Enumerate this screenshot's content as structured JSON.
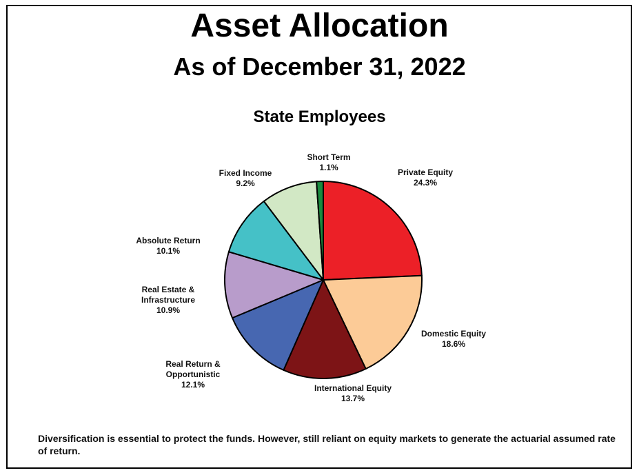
{
  "header": {
    "title": "Asset Allocation",
    "subtitle": "As of December 31, 2022"
  },
  "chart_data": {
    "type": "pie",
    "title": "State Employees",
    "unit": "%",
    "slices": [
      {
        "label": [
          "Private Equity"
        ],
        "value": 24.3,
        "value_text": "24.3%",
        "color": "#ec2027"
      },
      {
        "label": [
          "Domestic Equity"
        ],
        "value": 18.6,
        "value_text": "18.6%",
        "color": "#fccb97"
      },
      {
        "label": [
          "International Equity"
        ],
        "value": 13.7,
        "value_text": "13.7%",
        "color": "#7d1416"
      },
      {
        "label": [
          "Real Return &",
          "Opportunistic"
        ],
        "value": 12.1,
        "value_text": "12.1%",
        "color": "#4767b1"
      },
      {
        "label": [
          "Real Estate &",
          "Infrastructure"
        ],
        "value": 10.9,
        "value_text": "10.9%",
        "color": "#b89ccb"
      },
      {
        "label": [
          "Absolute Return"
        ],
        "value": 10.1,
        "value_text": "10.1%",
        "color": "#45c1c7"
      },
      {
        "label": [
          "Fixed Income"
        ],
        "value": 9.2,
        "value_text": "9.2%",
        "color": "#d2e8c5"
      },
      {
        "label": [
          "Short Term"
        ],
        "value": 1.1,
        "value_text": "1.1%",
        "color": "#1a8a3e"
      }
    ]
  },
  "footnote": "Diversification is essential to protect the funds.  However, still reliant on equity markets to generate the actuarial assumed rate of return."
}
